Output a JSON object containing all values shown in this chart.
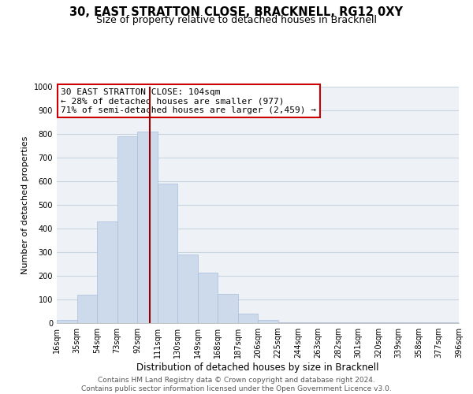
{
  "title": "30, EAST STRATTON CLOSE, BRACKNELL, RG12 0XY",
  "subtitle": "Size of property relative to detached houses in Bracknell",
  "xlabel": "Distribution of detached houses by size in Bracknell",
  "ylabel": "Number of detached properties",
  "bin_edges": [
    16,
    35,
    54,
    73,
    92,
    111,
    130,
    149,
    168,
    187,
    206,
    225,
    244,
    263,
    282,
    301,
    320,
    339,
    358,
    377,
    396
  ],
  "bar_heights": [
    15,
    120,
    430,
    790,
    810,
    590,
    290,
    215,
    125,
    40,
    15,
    5,
    5,
    2,
    2,
    2,
    2,
    2,
    2,
    5
  ],
  "bar_color": "#ccdaeb",
  "bar_edgecolor": "#a8bedb",
  "bg_color": "#eef2f7",
  "grid_color": "#c8d4e0",
  "vline_x": 104,
  "vline_color": "#990000",
  "annotation_text": "30 EAST STRATTON CLOSE: 104sqm\n← 28% of detached houses are smaller (977)\n71% of semi-detached houses are larger (2,459) →",
  "annotation_box_edgecolor": "#cc0000",
  "annotation_box_facecolor": "#ffffff",
  "annotation_fontsize": 8,
  "ylim": [
    0,
    1000
  ],
  "yticks": [
    0,
    100,
    200,
    300,
    400,
    500,
    600,
    700,
    800,
    900,
    1000
  ],
  "footer_text": "Contains HM Land Registry data © Crown copyright and database right 2024.\nContains public sector information licensed under the Open Government Licence v3.0.",
  "title_fontsize": 10.5,
  "subtitle_fontsize": 9,
  "xlabel_fontsize": 8.5,
  "ylabel_fontsize": 8,
  "tick_fontsize": 7,
  "footer_fontsize": 6.5
}
